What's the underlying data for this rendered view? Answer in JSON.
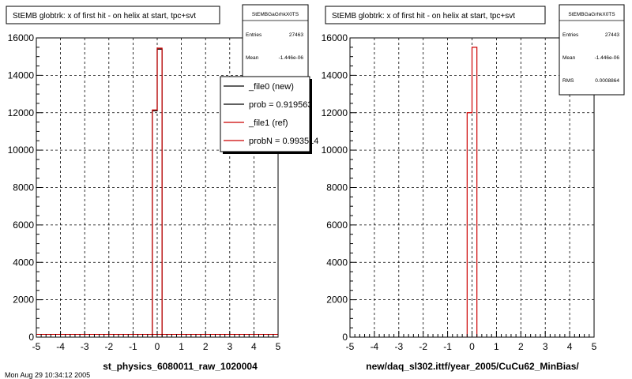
{
  "chart_data": [
    {
      "type": "bar",
      "title": "StEMB globtrk: x of first hit - on helix at start, tpc+svt",
      "xlabel": "st_physics_6080011_raw_1020004",
      "ylabel": "",
      "xlim": [
        -5,
        5
      ],
      "ylim": [
        0,
        16000
      ],
      "xticks": [
        "-5",
        "-4",
        "-3",
        "-2",
        "-1",
        "0",
        "1",
        "2",
        "3",
        "4",
        "5"
      ],
      "yticks": [
        "0",
        "2000",
        "4000",
        "6000",
        "8000",
        "10000",
        "12000",
        "14000",
        "16000"
      ],
      "grid": true,
      "stats": {
        "name": "StEMBGaGrhkX0TS",
        "rows": [
          {
            "label": "Entries",
            "value": "27463"
          },
          {
            "label": "Mean",
            "value": "-1.446e-06"
          }
        ]
      },
      "legend": {
        "placement": "top-right",
        "entries": [
          {
            "label": "_file0 (new)",
            "color": "#000000"
          },
          {
            "label": "prob = 0.919563",
            "color": "#000000"
          },
          {
            "label": "_file1 (ref)",
            "color": "#cc0000"
          },
          {
            "label": "probN = 0.993514",
            "color": "#cc0000"
          }
        ]
      },
      "series": [
        {
          "color": "#000000",
          "bins": [
            [
              -0.2,
              0,
              12100
            ],
            [
              0,
              0.2,
              15400
            ]
          ]
        },
        {
          "color": "#cc0000",
          "bins": [
            [
              -0.2,
              0,
              12150
            ],
            [
              0,
              0.2,
              15450
            ]
          ]
        }
      ],
      "baseline": {
        "value": 150,
        "color": "#cc0000"
      }
    },
    {
      "type": "bar",
      "title": "StEMB globtrk: x of first hit - on helix at start, tpc+svt",
      "xlabel": "new/daq_sl302.ittf/year_2005/CuCu62_MinBias/",
      "ylabel": "",
      "xlim": [
        -5,
        5
      ],
      "ylim": [
        0,
        16000
      ],
      "xticks": [
        "-5",
        "-4",
        "-3",
        "-2",
        "-1",
        "0",
        "1",
        "2",
        "3",
        "4",
        "5"
      ],
      "yticks": [
        "0",
        "2000",
        "4000",
        "6000",
        "8000",
        "10000",
        "12000",
        "14000",
        "16000"
      ],
      "grid": true,
      "stats": {
        "name": "StEMBGaGrhkX0TS",
        "rows": [
          {
            "label": "Entries",
            "value": "27443"
          },
          {
            "label": "Mean",
            "value": "-1.446e-06"
          },
          {
            "label": "RMS",
            "value": "0.0008864"
          }
        ]
      },
      "series": [
        {
          "color": "#cc0000",
          "bins": [
            [
              -0.2,
              0,
              12000
            ],
            [
              0,
              0.2,
              15500
            ]
          ]
        }
      ]
    }
  ],
  "footer_text": "Mon Aug 29 10:34:12 2005"
}
